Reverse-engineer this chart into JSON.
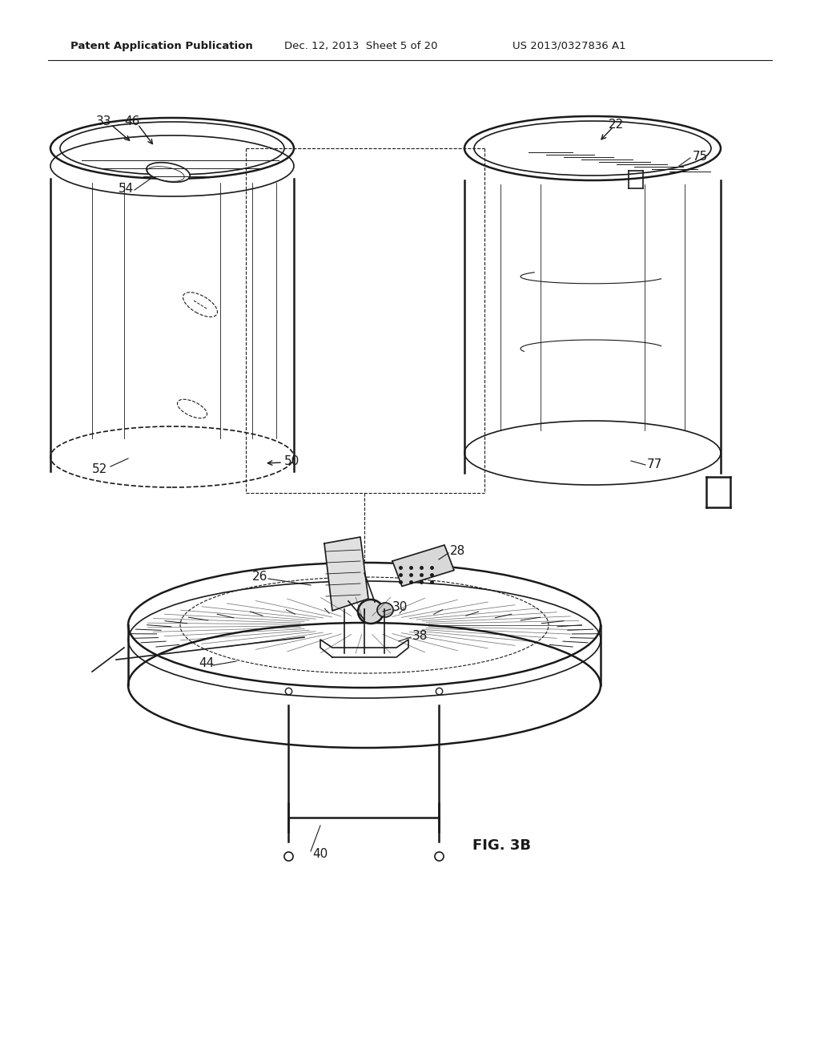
{
  "title_left": "Patent Application Publication",
  "title_mid": "Dec. 12, 2013  Sheet 5 of 20",
  "title_right": "US 2013/0327836 A1",
  "fig_label": "FIG. 3B",
  "background_color": "#ffffff",
  "line_color": "#1a1a1a",
  "label_fontsize": 11,
  "header_fontsize": 9.5,
  "fig_width": 1024,
  "fig_height": 1320
}
